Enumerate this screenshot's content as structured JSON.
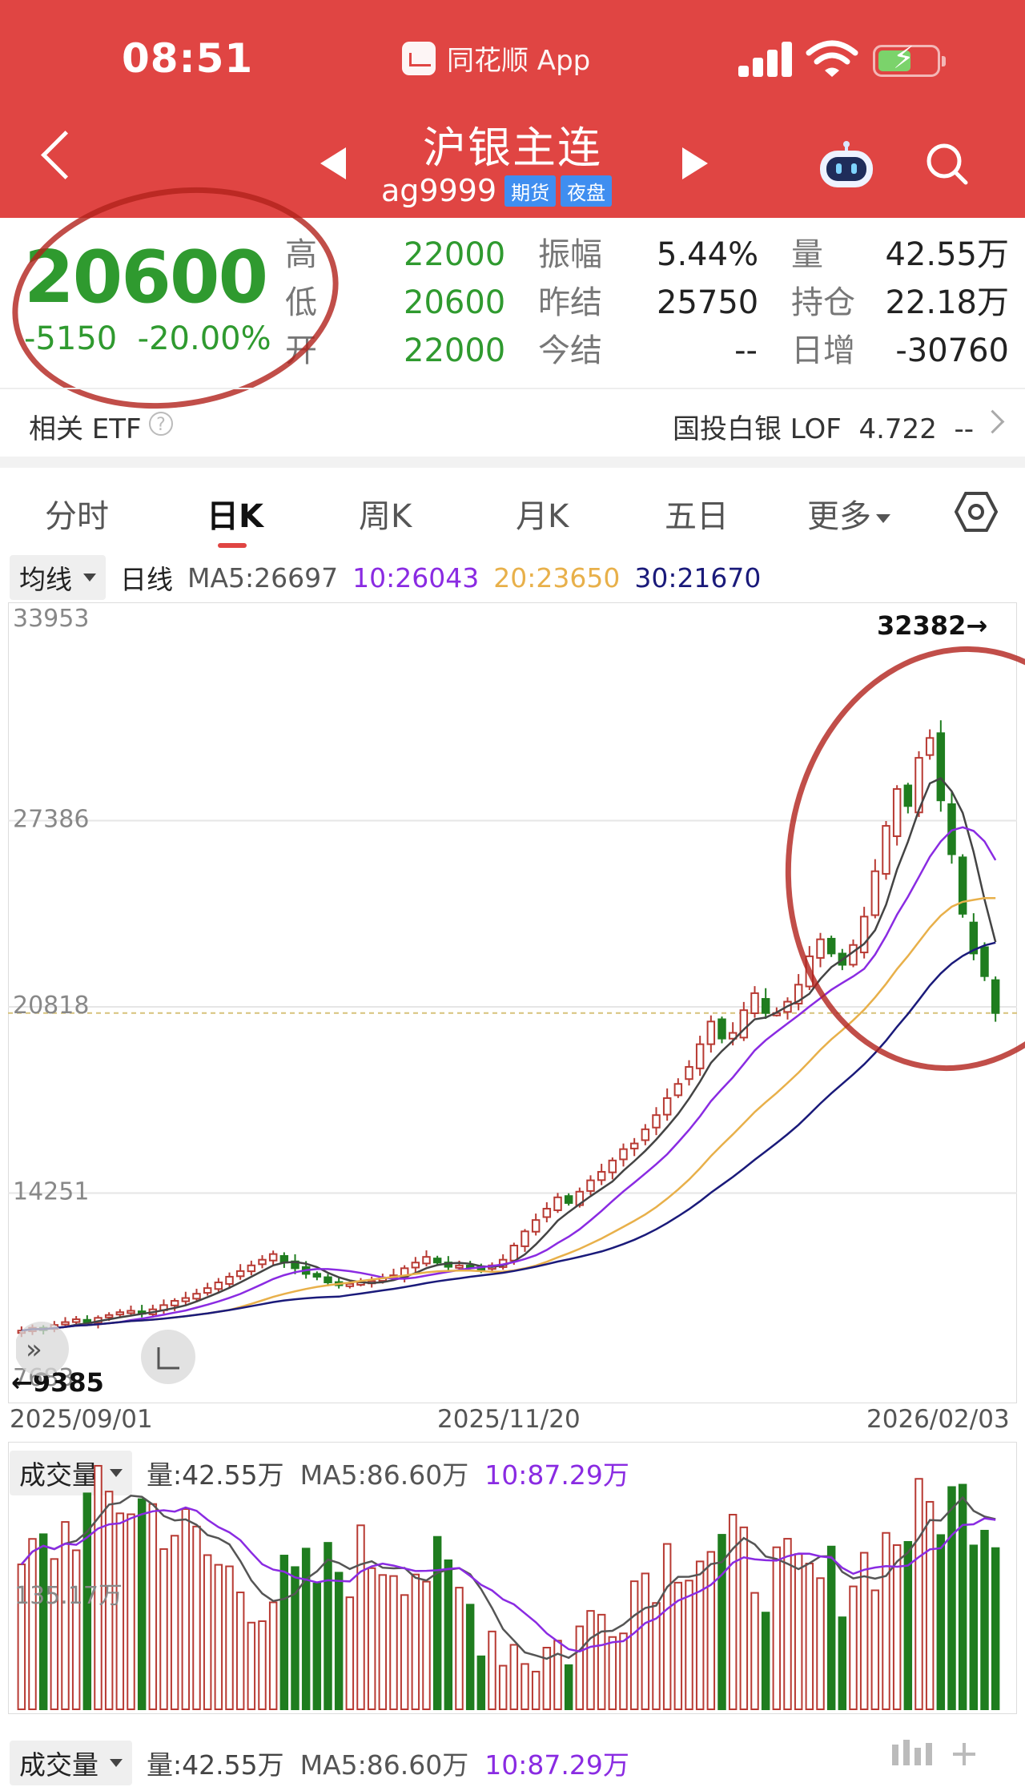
{
  "status_bar": {
    "time": "08:51",
    "app_name": "同花顺 App",
    "battery_charging": true
  },
  "header": {
    "title": "沪银主连",
    "code": "ag9999",
    "tags": [
      "期货",
      "夜盘"
    ],
    "icons": [
      "back-icon",
      "prev-arrow-icon",
      "next-arrow-icon",
      "robot-assistant-icon",
      "search-icon"
    ]
  },
  "quote": {
    "price": "20600",
    "change": "-5150",
    "change_pct": "-20.00%",
    "fields": [
      {
        "label": "高",
        "value": "22000"
      },
      {
        "label": "低",
        "value": "20600"
      },
      {
        "label": "开",
        "value": "22000"
      },
      {
        "label": "振幅",
        "value": "5.44%"
      },
      {
        "label": "昨结",
        "value": "25750"
      },
      {
        "label": "今结",
        "value": "--"
      },
      {
        "label": "量",
        "value": "42.55万"
      },
      {
        "label": "持仓",
        "value": "22.18万"
      },
      {
        "label": "日增",
        "value": "-30760"
      }
    ],
    "colors": {
      "down": "#2f9a2f",
      "up": "#b83a33",
      "header": "#e04543"
    }
  },
  "etf": {
    "label": "相关 ETF",
    "name": "国投白银 LOF",
    "price": "4.722",
    "change": "--"
  },
  "tabs": {
    "items": [
      "分时",
      "日K",
      "周K",
      "月K",
      "五日",
      "更多"
    ],
    "active": "日K"
  },
  "ma_legend": {
    "selector": "均线",
    "period": "日线",
    "ma5": "MA5:26697",
    "ma10": "10:26043",
    "ma20": "20:23650",
    "ma30": "30:21670",
    "colors": {
      "ma5": "#444444",
      "ma10": "#8a2be2",
      "ma20": "#e8b04a",
      "ma30": "#1a1a7a"
    }
  },
  "chart_data": [
    {
      "type": "candlestick",
      "y_ticks": [
        "33953",
        "27386",
        "20818",
        "14251",
        "7683"
      ],
      "ylim": [
        7683,
        33953
      ],
      "high_marker": "32382→",
      "low_marker": "←9385",
      "last_price_line": 20600,
      "dates": [
        "2025/09/01",
        "2025/11/20",
        "2026/02/03"
      ],
      "note_closes": [
        9400,
        9500,
        9450,
        9600,
        9700,
        9800,
        9700,
        9850,
        9950,
        10050,
        10100,
        10000,
        10150,
        10300,
        10450,
        10550,
        10700,
        10900,
        11100,
        11300,
        11500,
        11700,
        11900,
        12100,
        11800,
        11600,
        11400,
        11300,
        11100,
        11000,
        11050,
        11100,
        11150,
        11250,
        11350,
        11600,
        11800,
        12000,
        11800,
        11650,
        11700,
        11650,
        11550,
        11700,
        11900,
        12400,
        12900,
        13300,
        13700,
        14100,
        13900,
        14300,
        14700,
        15000,
        15400,
        15800,
        16000,
        16500,
        17000,
        17600,
        18100,
        18700,
        19500,
        20300,
        19700,
        19900,
        20700,
        21300,
        20600,
        20600,
        21000,
        21600,
        22600,
        23200,
        22700,
        22300,
        23000,
        24000,
        25600,
        27200,
        28500,
        27900,
        29600,
        30300,
        28100,
        26200,
        24100,
        22700,
        21900,
        20600
      ]
    },
    {
      "type": "bar",
      "title": "成交量",
      "y_tick": "135.17万",
      "vol": "量:42.55万",
      "ma5": "MA5:86.60万",
      "ma10": "10:87.29万"
    }
  ],
  "volume_panel_2": {
    "selector": "成交量",
    "vol": "量:42.55万",
    "ma5": "MA5:86.60万",
    "ma10": "10:87.29万"
  }
}
